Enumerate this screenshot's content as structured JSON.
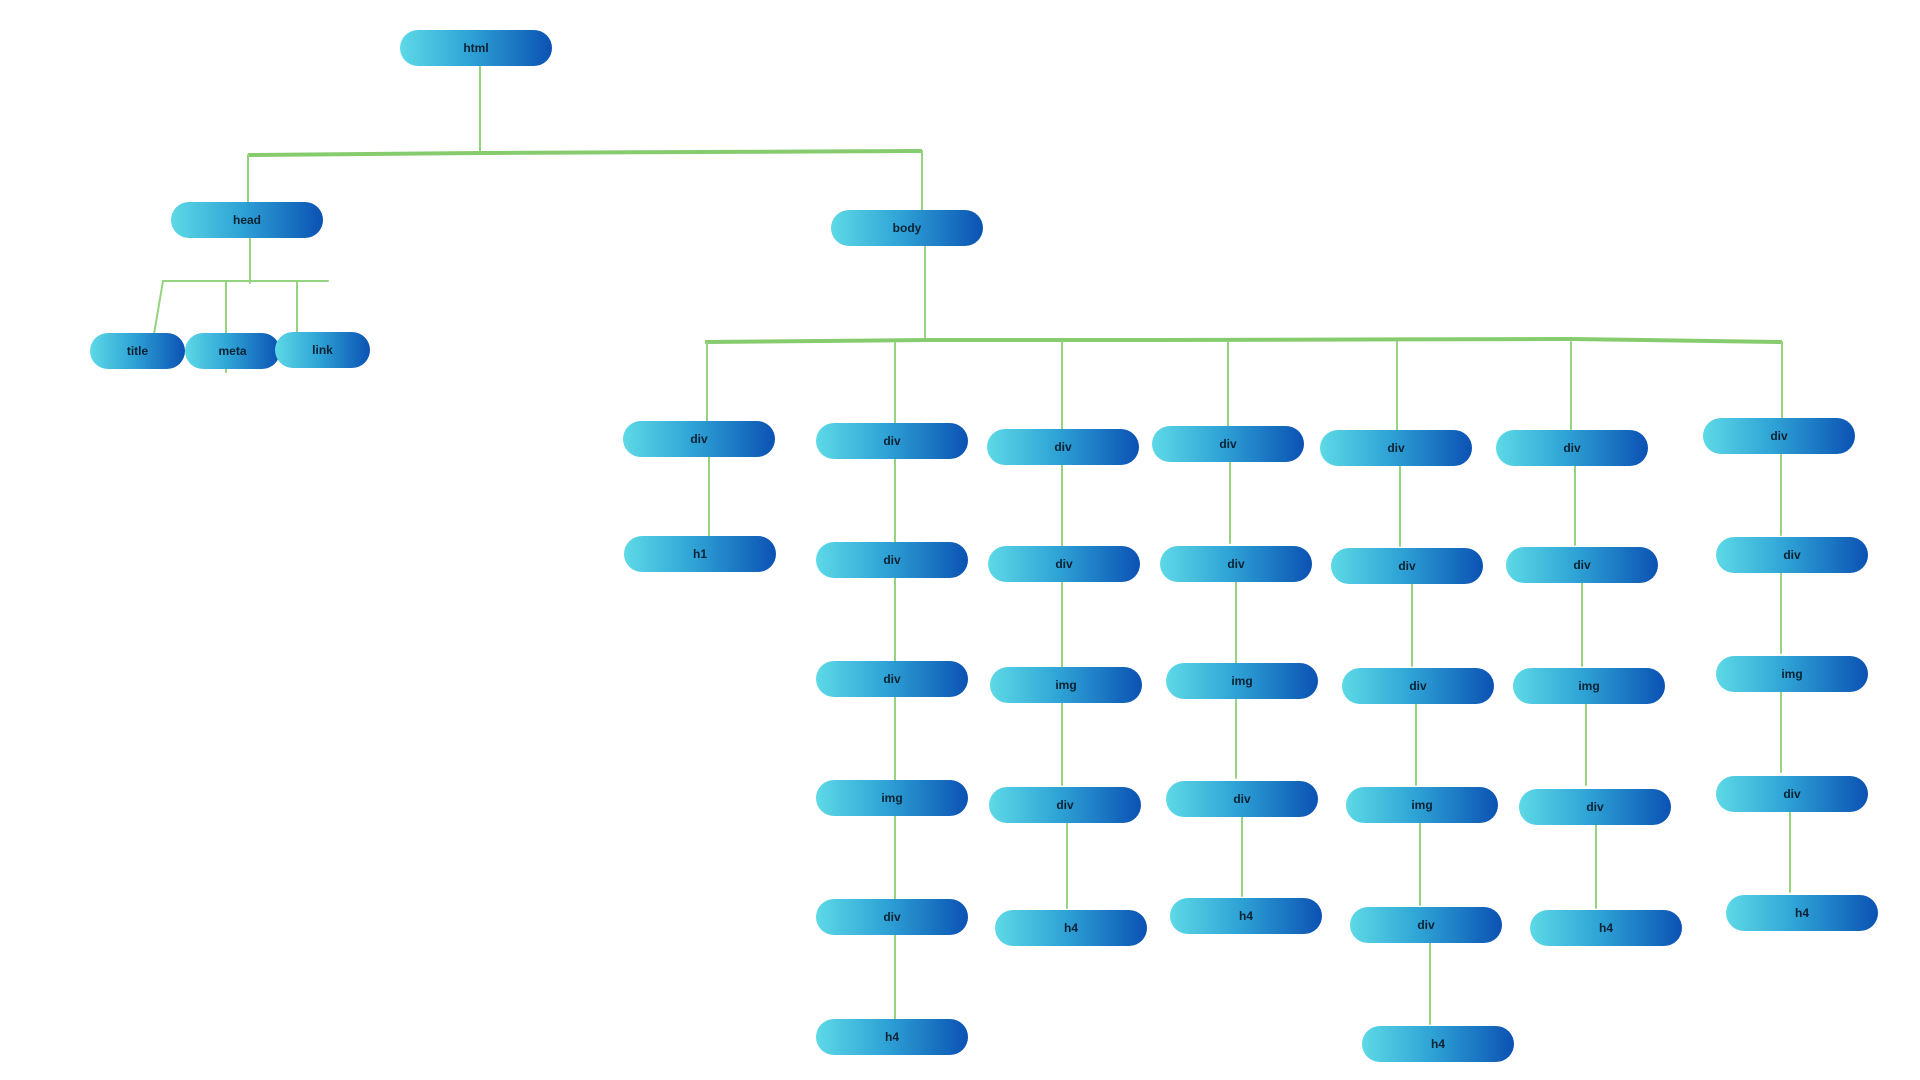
{
  "diagram": {
    "nodes": {
      "html": "html",
      "head": "head",
      "body": "body",
      "title": "title",
      "meta": "meta",
      "link": "link",
      "c1_div": "div",
      "c1_h1": "h1",
      "c2_div1": "div",
      "c2_div2": "div",
      "c2_div3": "div",
      "c2_img": "img",
      "c2_div4": "div",
      "c2_h4": "h4",
      "c3_div1": "div",
      "c3_div2": "div",
      "c3_img": "img",
      "c3_div3": "div",
      "c3_h4": "h4",
      "c4_div1": "div",
      "c4_div2": "div",
      "c4_img": "img",
      "c4_div3": "div",
      "c4_h4": "h4",
      "c5_div1": "div",
      "c5_div2": "div",
      "c5_div3": "div",
      "c5_img": "img",
      "c5_div4": "div",
      "c5_h4": "h4",
      "c6_div1": "div",
      "c6_div2": "div",
      "c6_img": "img",
      "c6_div3": "div",
      "c6_h4": "h4",
      "c7_div1": "div",
      "c7_div2": "div",
      "c7_img": "img",
      "c7_div3": "div",
      "c7_h4": "h4"
    },
    "colors": {
      "node_gradient_start": "#5dd9e6",
      "node_gradient_end": "#0b52b3",
      "connector": "#93d47e",
      "label": "#0a2233"
    }
  }
}
